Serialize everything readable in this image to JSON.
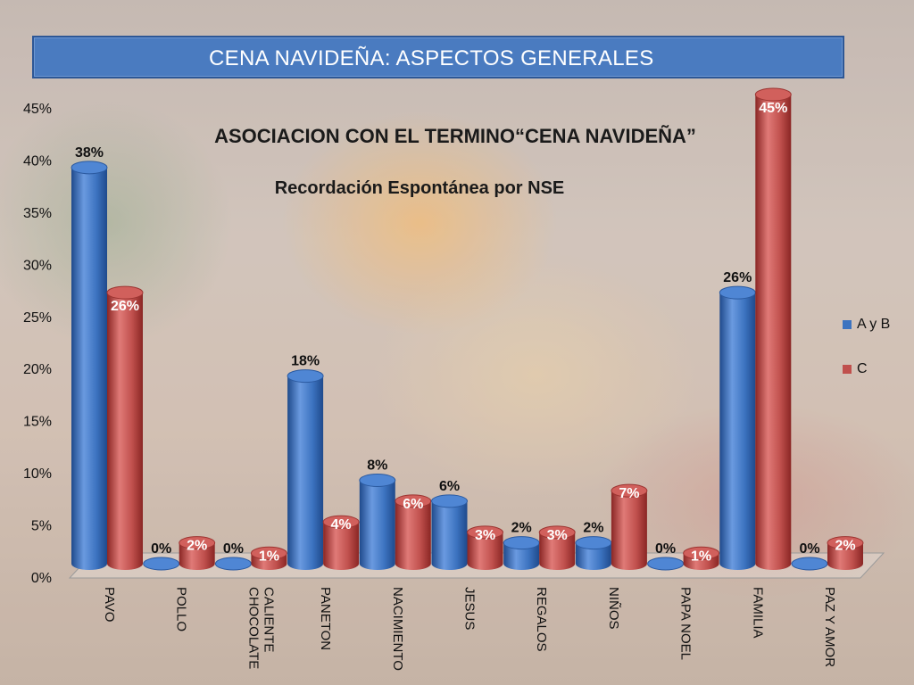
{
  "header": {
    "title": "CENA NAVIDEÑA: ASPECTOS GENERALES"
  },
  "chart_data": {
    "type": "bar",
    "title": "ASOCIACION CON EL TERMINO“CENA  NAVIDEÑA”",
    "subtitle": "Recordación Espontánea por NSE",
    "categories": [
      "PAVO",
      "POLLO",
      "CHOCOLATE CALIENTE",
      "PANETON",
      "NACIMIENTO",
      "JESUS",
      "REGALOS",
      "NIÑOS",
      "PAPA NOEL",
      "FAMILIA",
      "PAZ Y AMOR"
    ],
    "series": [
      {
        "name": "A y B",
        "color": "#3c73c0",
        "values": [
          38,
          0,
          0,
          18,
          8,
          6,
          2,
          2,
          0,
          26,
          0
        ]
      },
      {
        "name": "C",
        "color": "#c0504d",
        "values": [
          26,
          2,
          1,
          4,
          6,
          3,
          3,
          7,
          1,
          45,
          2
        ]
      }
    ],
    "value_suffix": "%",
    "ylim": [
      0,
      45
    ],
    "yticks": [
      "0%",
      "5%",
      "10%",
      "15%",
      "20%",
      "25%",
      "30%",
      "35%",
      "40%",
      "45%"
    ],
    "legend_position": "right",
    "style": "3d-cylinder"
  }
}
